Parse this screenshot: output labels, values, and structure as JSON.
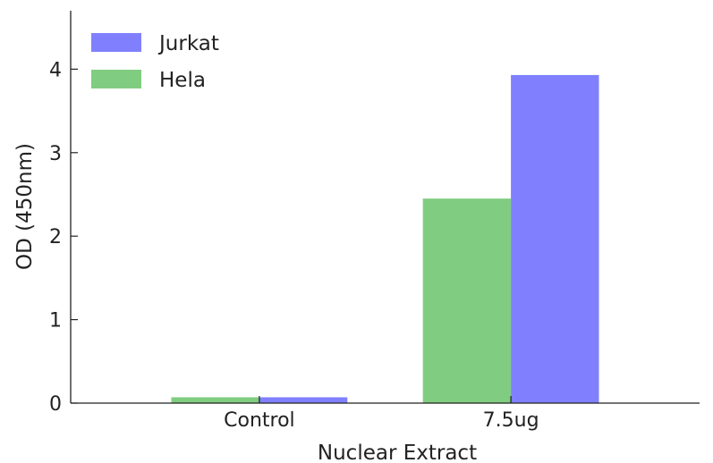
{
  "chart_data": {
    "type": "bar",
    "title": "",
    "xlabel": "Nuclear Extract",
    "ylabel": "OD (450nm)",
    "categories": [
      "Control",
      "7.5ug"
    ],
    "series": [
      {
        "name": "Hela",
        "color": "#80cc80",
        "values": [
          0.07,
          2.45
        ]
      },
      {
        "name": "Jurkat",
        "color": "#8080ff",
        "values": [
          0.07,
          3.93
        ]
      }
    ],
    "legend_order": [
      "Jurkat",
      "Hela"
    ],
    "legend_position": "top-left",
    "ylim": [
      0,
      4.7
    ],
    "yticks": [
      "0",
      "1",
      "2",
      "3",
      "4"
    ],
    "grid": false
  }
}
